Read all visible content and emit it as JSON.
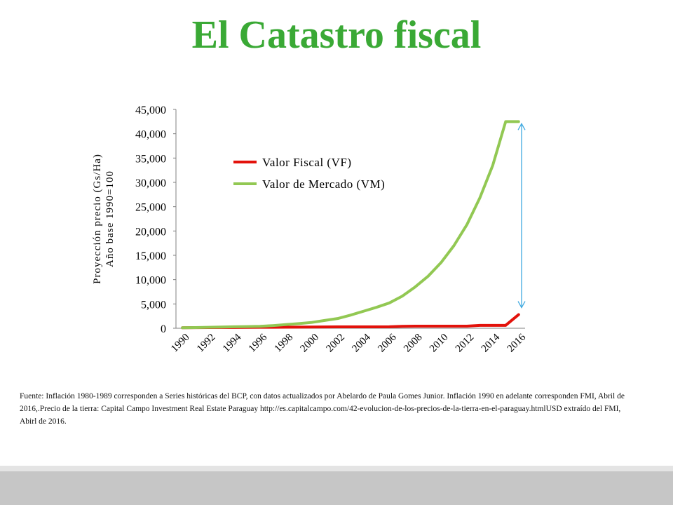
{
  "title": "El Catastro fiscal",
  "source_note": "Fuente:  Inflación 1980-1989 corresponden a Series históricas del BCP, con datos actualizados por Abelardo de Paula Gomes Junior. Inflación 1990 en adelante corresponden FMI, Abril  de 2016,.Precio  de la tierra: Capital Campo Investment Real Estate Paraguay http://es.capitalcampo.com/42-evolucion-de-los-precios-de-la-tierra-en-el-paraguay.htmlUSD extraído del FMI, Abirl  de 2016.",
  "colors": {
    "title": "#3aa935",
    "vf": "#e3120b",
    "vm": "#92c853",
    "arrow": "#3fa9e0",
    "axis": "#808080"
  },
  "chart_data": {
    "type": "line",
    "ylabel_line1": "Proyección precio (Gs/Ha)",
    "ylabel_line2": "Año base 1990=100",
    "ylim": [
      0,
      45000
    ],
    "xlim": [
      1990,
      2016
    ],
    "ytick_values": [
      0,
      5000,
      10000,
      15000,
      20000,
      25000,
      30000,
      35000,
      40000,
      45000
    ],
    "ytick_labels": [
      "0",
      "5,000",
      "10,000",
      "15,000",
      "20,000",
      "25,000",
      "30,000",
      "35,000",
      "40,000",
      "45,000"
    ],
    "xtick_labels": [
      "1990",
      "1992",
      "1994",
      "1996",
      "1998",
      "2000",
      "2002",
      "2004",
      "2006",
      "2008",
      "2010",
      "2012",
      "2014",
      "2016"
    ],
    "legend_position": "upper-left-inside",
    "grid": false,
    "x": [
      1990,
      1991,
      1992,
      1993,
      1994,
      1995,
      1996,
      1997,
      1998,
      1999,
      2000,
      2001,
      2002,
      2003,
      2004,
      2005,
      2006,
      2007,
      2008,
      2009,
      2010,
      2011,
      2012,
      2013,
      2014,
      2015,
      2016
    ],
    "series": [
      {
        "name": "Valor Fiscal (VF)",
        "color": "#e3120b",
        "values": [
          100,
          120,
          150,
          160,
          170,
          180,
          190,
          200,
          220,
          240,
          260,
          270,
          280,
          280,
          290,
          290,
          300,
          400,
          430,
          430,
          440,
          440,
          440,
          600,
          600,
          600,
          2800
        ]
      },
      {
        "name": "Valor de Mercado (VM)",
        "color": "#92c853",
        "values": [
          100,
          150,
          200,
          250,
          300,
          350,
          400,
          550,
          750,
          950,
          1200,
          1600,
          2000,
          2700,
          3500,
          4300,
          5200,
          6600,
          8500,
          10700,
          13500,
          17000,
          21300,
          26800,
          33500,
          42500,
          42500
        ]
      }
    ],
    "annotation": "double-headed arrow from the Valor Fiscal (VF) end value up to the Valor de Mercado (VM) end value at 2016"
  }
}
